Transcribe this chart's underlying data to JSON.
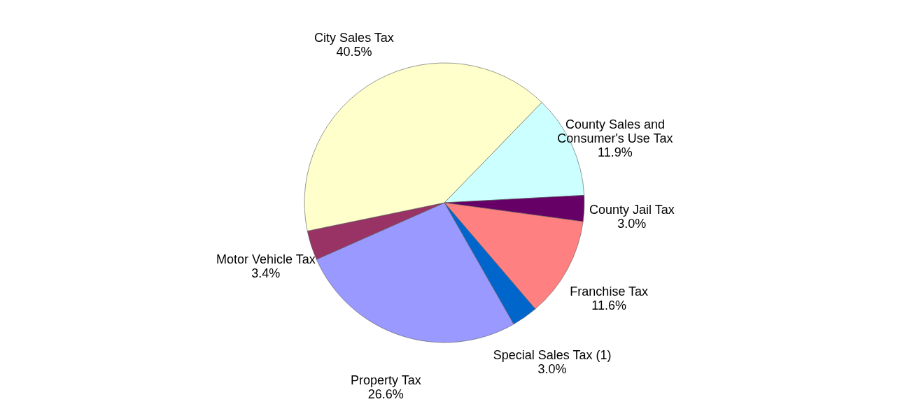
{
  "chart_data": {
    "type": "pie",
    "categories": [
      "County Sales and Consumer's Use Tax",
      "County Jail Tax",
      "Franchise Tax",
      "Special Sales Tax (1)",
      "Property Tax",
      "Motor Vehicle Tax",
      "City Sales Tax"
    ],
    "values": [
      11.9,
      3.0,
      11.6,
      3.0,
      26.6,
      3.4,
      40.5
    ],
    "colors": [
      "#ccffff",
      "#660066",
      "#ff8080",
      "#0066cc",
      "#9999ff",
      "#993366",
      "#ffffcc"
    ],
    "value_labels": [
      "11.9%",
      "3.0%",
      "11.6%",
      "3.0%",
      "26.6%",
      "3.4%",
      "40.5%"
    ],
    "legend": false
  }
}
